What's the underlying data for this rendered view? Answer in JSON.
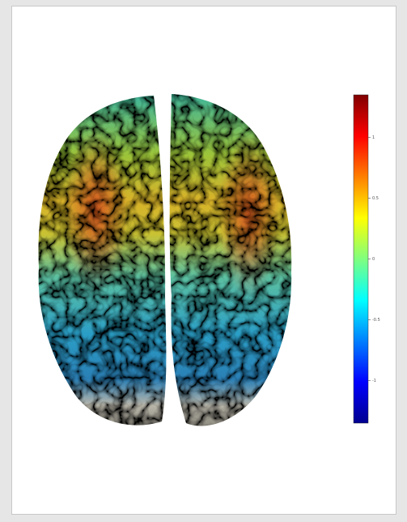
{
  "colorbar": {
    "clim": [
      -1.35,
      1.35
    ],
    "ticks": [
      1,
      0.5,
      0,
      -0.5,
      -1
    ]
  }
}
